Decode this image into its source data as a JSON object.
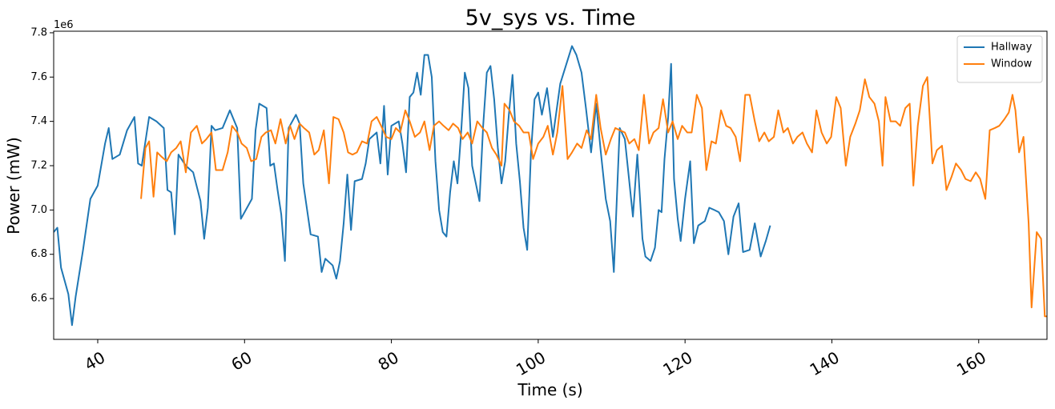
{
  "chart_data": {
    "type": "line",
    "title": "5v_sys vs. Time",
    "x_label": "Time (s)",
    "y_label": "Power (mW)",
    "y_offset_label": "1e6",
    "xlim": [
      34,
      169.3
    ],
    "xticks": [
      40,
      60,
      80,
      100,
      120,
      140,
      160
    ],
    "ylim": [
      6.416,
      7.807
    ],
    "yticks": [
      6.6,
      6.8,
      {
        "value": 7,
        "label": "7.0"
      },
      7.2,
      7.4,
      7.6,
      7.8
    ],
    "legend": "upper right",
    "grid": false,
    "series": [
      {
        "name": "Hallway",
        "color": "#1f77b4",
        "x": [
          34,
          34.5,
          35,
          36,
          36.5,
          37,
          38,
          39,
          40,
          41,
          41.5,
          42,
          43,
          44,
          45,
          45.5,
          46,
          47,
          48,
          49,
          49.5,
          50,
          50.5,
          51,
          52,
          53,
          54,
          54.5,
          55,
          55.5,
          56,
          57,
          58,
          59,
          59.5,
          60,
          61,
          61.5,
          62,
          63,
          63.5,
          64,
          64.5,
          65,
          65.5,
          66,
          67,
          67.5,
          68,
          69,
          70,
          70.5,
          71,
          72,
          72.5,
          73,
          73.5,
          74,
          74.5,
          75,
          76,
          76.5,
          77,
          78,
          78.5,
          79,
          79.5,
          80,
          81,
          81.5,
          82,
          82.5,
          83,
          83.5,
          84,
          84.5,
          85,
          85.5,
          86,
          86.5,
          87,
          87.5,
          88,
          88.5,
          89,
          89.5,
          90,
          90.5,
          91,
          92,
          92.5,
          93,
          93.5,
          94,
          94.5,
          95,
          95.5,
          96,
          96.5,
          97,
          97.5,
          98,
          98.5,
          99,
          99.5,
          100,
          100.5,
          101.2,
          102,
          103,
          104.6,
          105.2,
          105.9,
          106.5,
          107.2,
          107.9,
          108.5,
          109.2,
          109.8,
          110.3,
          111.1,
          111.8,
          112.4,
          112.9,
          113.5,
          114.2,
          114.6,
          115.3,
          115.9,
          116.4,
          116.8,
          117.2,
          117.7,
          118.1,
          118.5,
          119,
          119.4,
          120,
          120.7,
          121.2,
          121.8,
          122.7,
          123.3,
          124,
          124.6,
          125.3,
          125.9,
          126.6,
          127.3,
          127.9,
          128.8,
          129.5,
          130.3,
          131,
          131.6
        ],
        "values": [
          6.9,
          6.92,
          6.74,
          6.62,
          6.48,
          6.61,
          6.82,
          7.05,
          7.11,
          7.3,
          7.37,
          7.23,
          7.25,
          7.36,
          7.42,
          7.21,
          7.2,
          7.42,
          7.4,
          7.37,
          7.09,
          7.08,
          6.89,
          7.25,
          7.2,
          7.17,
          7.04,
          6.87,
          7.01,
          7.38,
          7.36,
          7.37,
          7.45,
          7.37,
          6.96,
          6.99,
          7.05,
          7.36,
          7.48,
          7.46,
          7.2,
          7.21,
          7.09,
          6.98,
          6.77,
          7.37,
          7.43,
          7.39,
          7.12,
          6.89,
          6.88,
          6.72,
          6.78,
          6.75,
          6.69,
          6.77,
          6.94,
          7.16,
          6.91,
          7.13,
          7.14,
          7.21,
          7.32,
          7.35,
          7.21,
          7.47,
          7.16,
          7.38,
          7.4,
          7.3,
          7.17,
          7.51,
          7.53,
          7.62,
          7.52,
          7.7,
          7.7,
          7.6,
          7.22,
          7.0,
          6.9,
          6.88,
          7.08,
          7.22,
          7.12,
          7.35,
          7.62,
          7.55,
          7.2,
          7.04,
          7.38,
          7.62,
          7.65,
          7.5,
          7.28,
          7.12,
          7.22,
          7.43,
          7.61,
          7.3,
          7.13,
          6.92,
          6.82,
          7.25,
          7.5,
          7.53,
          7.43,
          7.55,
          7.33,
          7.57,
          7.74,
          7.7,
          7.62,
          7.46,
          7.26,
          7.48,
          7.27,
          7.05,
          6.95,
          6.72,
          7.37,
          7.32,
          7.13,
          6.97,
          7.25,
          6.87,
          6.79,
          6.77,
          6.83,
          7.0,
          6.99,
          7.23,
          7.42,
          7.66,
          7.14,
          6.96,
          6.86,
          7.05,
          7.22,
          6.85,
          6.93,
          6.95,
          7.01,
          7.0,
          6.99,
          6.95,
          6.8,
          6.97,
          7.03,
          6.81,
          6.82,
          6.94,
          6.79,
          6.86,
          6.93
        ]
      },
      {
        "name": "Window",
        "color": "#ff7f0e",
        "x": [
          45.9,
          46.5,
          47,
          47.6,
          48.1,
          48.7,
          49.4,
          50,
          50.7,
          51.3,
          52,
          52.7,
          53.5,
          54.2,
          54.8,
          55.5,
          56.1,
          57,
          57.7,
          58.3,
          59,
          59.6,
          60.3,
          60.9,
          61.6,
          62.3,
          62.9,
          63.6,
          64.2,
          64.9,
          65.6,
          66.2,
          66.8,
          67.5,
          68.1,
          68.8,
          69.5,
          70.1,
          70.8,
          71.5,
          72.1,
          72.8,
          73.5,
          74.1,
          74.7,
          75.3,
          76,
          76.7,
          77.3,
          78,
          78.6,
          79.3,
          80,
          80.6,
          81.2,
          81.9,
          82.5,
          83.2,
          83.9,
          84.5,
          85.2,
          85.8,
          86.5,
          87.1,
          87.8,
          88.4,
          89.1,
          89.7,
          90.4,
          91,
          91.7,
          92.4,
          93,
          93.7,
          94.3,
          95,
          95.4,
          96.1,
          96.7,
          97.4,
          98,
          98.7,
          99.3,
          100,
          100.7,
          101.3,
          102,
          102.6,
          103.3,
          104,
          104.6,
          105.3,
          105.9,
          106.6,
          107.2,
          107.9,
          108.5,
          109.2,
          109.9,
          110.5,
          111.1,
          111.8,
          112.4,
          113.1,
          113.7,
          114.4,
          115.1,
          115.7,
          116.4,
          117,
          117.7,
          118.3,
          119,
          119.6,
          120.3,
          120.9,
          121.6,
          122.3,
          122.9,
          123.6,
          124.2,
          124.9,
          125.6,
          126.2,
          126.9,
          127.5,
          128.2,
          128.8,
          129.5,
          130.1,
          130.8,
          131.4,
          132.1,
          132.7,
          133.4,
          134,
          134.7,
          135.3,
          136,
          136.6,
          137.3,
          137.9,
          138.6,
          139.3,
          139.9,
          140.6,
          141.2,
          141.9,
          142.5,
          143.2,
          143.8,
          144.5,
          145.1,
          145.8,
          146.4,
          146.9,
          147.3,
          148,
          148.7,
          149.3,
          150,
          150.6,
          151.1,
          151.7,
          152.4,
          153,
          153.7,
          154.3,
          155,
          155.6,
          156.3,
          156.9,
          157.6,
          158.2,
          158.9,
          159.6,
          160.2,
          160.9,
          161.5,
          162.2,
          162.8,
          163.5,
          164.1,
          164.6,
          165,
          165.5,
          166.1,
          166.8,
          167.2,
          167.9,
          168.5,
          169,
          169.3
        ],
        "values": [
          7.05,
          7.28,
          7.31,
          7.06,
          7.26,
          7.24,
          7.22,
          7.26,
          7.28,
          7.31,
          7.17,
          7.35,
          7.38,
          7.3,
          7.32,
          7.35,
          7.18,
          7.18,
          7.26,
          7.38,
          7.35,
          7.3,
          7.28,
          7.22,
          7.23,
          7.33,
          7.35,
          7.36,
          7.3,
          7.41,
          7.3,
          7.38,
          7.32,
          7.39,
          7.37,
          7.35,
          7.25,
          7.27,
          7.36,
          7.12,
          7.42,
          7.41,
          7.35,
          7.26,
          7.25,
          7.26,
          7.31,
          7.3,
          7.4,
          7.42,
          7.38,
          7.33,
          7.32,
          7.37,
          7.35,
          7.45,
          7.4,
          7.33,
          7.35,
          7.4,
          7.27,
          7.38,
          7.4,
          7.38,
          7.36,
          7.39,
          7.37,
          7.32,
          7.35,
          7.3,
          7.4,
          7.37,
          7.35,
          7.28,
          7.25,
          7.2,
          7.48,
          7.45,
          7.4,
          7.38,
          7.35,
          7.35,
          7.23,
          7.3,
          7.33,
          7.38,
          7.25,
          7.35,
          7.56,
          7.23,
          7.26,
          7.3,
          7.28,
          7.36,
          7.32,
          7.52,
          7.37,
          7.25,
          7.32,
          7.37,
          7.36,
          7.35,
          7.3,
          7.32,
          7.27,
          7.52,
          7.3,
          7.35,
          7.37,
          7.5,
          7.35,
          7.4,
          7.32,
          7.38,
          7.35,
          7.35,
          7.52,
          7.46,
          7.18,
          7.31,
          7.3,
          7.45,
          7.38,
          7.37,
          7.33,
          7.22,
          7.52,
          7.52,
          7.4,
          7.31,
          7.35,
          7.31,
          7.33,
          7.45,
          7.35,
          7.37,
          7.3,
          7.33,
          7.35,
          7.3,
          7.26,
          7.45,
          7.35,
          7.3,
          7.33,
          7.51,
          7.46,
          7.2,
          7.33,
          7.39,
          7.45,
          7.59,
          7.51,
          7.48,
          7.4,
          7.2,
          7.51,
          7.4,
          7.4,
          7.38,
          7.46,
          7.48,
          7.11,
          7.38,
          7.56,
          7.6,
          7.21,
          7.27,
          7.29,
          7.09,
          7.15,
          7.21,
          7.18,
          7.14,
          7.13,
          7.17,
          7.14,
          7.05,
          7.36,
          7.37,
          7.38,
          7.41,
          7.44,
          7.52,
          7.45,
          7.26,
          7.33,
          6.94,
          6.56,
          6.9,
          6.87,
          6.52,
          6.52
        ]
      }
    ]
  }
}
